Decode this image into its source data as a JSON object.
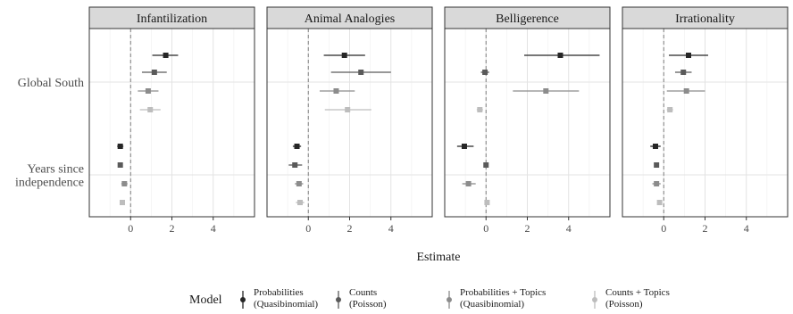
{
  "chart_data": {
    "type": "scatter",
    "subtype": "coefficient-plot-with-error-bars",
    "facets": [
      "Infantilization",
      "Animal Analogies",
      "Belligerence",
      "Irrationality"
    ],
    "y_categories": [
      "Global South",
      "Years since\nindependence"
    ],
    "xlabel": "Estimate",
    "x_ticks": [
      0,
      2,
      4
    ],
    "xlim": [
      -2,
      6
    ],
    "reference_line": 0,
    "legend": {
      "title": "Model",
      "position": "bottom",
      "entries": [
        {
          "label": "Probabilities\n(Quasibinomial)",
          "color": "#262626"
        },
        {
          "label": "Counts\n(Poisson)",
          "color": "#5a5a5a"
        },
        {
          "label": "Probabilities + Topics\n(Quasibinomial)",
          "color": "#8c8c8c"
        },
        {
          "label": "Counts + Topics\n(Poisson)",
          "color": "#bdbdbd"
        }
      ]
    },
    "series": [
      {
        "name": "Probabilities\n(Quasibinomial)",
        "values": [
          {
            "facet": "Infantilization",
            "term": "Global South",
            "est": 1.7,
            "lo": 1.05,
            "hi": 2.3
          },
          {
            "facet": "Infantilization",
            "term": "Years since\nindependence",
            "est": -0.5,
            "lo": -0.65,
            "hi": -0.35
          },
          {
            "facet": "Animal Analogies",
            "term": "Global South",
            "est": 1.75,
            "lo": 0.75,
            "hi": 2.75
          },
          {
            "facet": "Animal Analogies",
            "term": "Years since\nindependence",
            "est": -0.55,
            "lo": -0.75,
            "hi": -0.35
          },
          {
            "facet": "Belligerence",
            "term": "Global South",
            "est": 3.6,
            "lo": 1.85,
            "hi": 5.5
          },
          {
            "facet": "Belligerence",
            "term": "Years since\nindependence",
            "est": -1.05,
            "lo": -1.4,
            "hi": -0.6
          },
          {
            "facet": "Irrationality",
            "term": "Global South",
            "est": 1.2,
            "lo": 0.25,
            "hi": 2.15
          },
          {
            "facet": "Irrationality",
            "term": "Years since\nindependence",
            "est": -0.4,
            "lo": -0.65,
            "hi": -0.15
          }
        ]
      },
      {
        "name": "Counts\n(Poisson)",
        "values": [
          {
            "facet": "Infantilization",
            "term": "Global South",
            "est": 1.15,
            "lo": 0.55,
            "hi": 1.75
          },
          {
            "facet": "Infantilization",
            "term": "Years since\nindependence",
            "est": -0.5,
            "lo": -0.6,
            "hi": -0.4
          },
          {
            "facet": "Animal Analogies",
            "term": "Global South",
            "est": 2.55,
            "lo": 1.1,
            "hi": 4.0
          },
          {
            "facet": "Animal Analogies",
            "term": "Years since\nindependence",
            "est": -0.65,
            "lo": -0.95,
            "hi": -0.3
          },
          {
            "facet": "Belligerence",
            "term": "Global South",
            "est": -0.05,
            "lo": -0.25,
            "hi": 0.15
          },
          {
            "facet": "Belligerence",
            "term": "Years since\nindependence",
            "est": 0.0,
            "lo": -0.05,
            "hi": 0.05
          },
          {
            "facet": "Irrationality",
            "term": "Global South",
            "est": 0.95,
            "lo": 0.55,
            "hi": 1.35
          },
          {
            "facet": "Irrationality",
            "term": "Years since\nindependence",
            "est": -0.35,
            "lo": -0.45,
            "hi": -0.25
          }
        ]
      },
      {
        "name": "Probabilities + Topics\n(Quasibinomial)",
        "values": [
          {
            "facet": "Infantilization",
            "term": "Global South",
            "est": 0.85,
            "lo": 0.35,
            "hi": 1.35
          },
          {
            "facet": "Infantilization",
            "term": "Years since\nindependence",
            "est": -0.3,
            "lo": -0.45,
            "hi": -0.15
          },
          {
            "facet": "Animal Analogies",
            "term": "Global South",
            "est": 1.35,
            "lo": 0.55,
            "hi": 2.25
          },
          {
            "facet": "Animal Analogies",
            "term": "Years since\nindependence",
            "est": -0.45,
            "lo": -0.65,
            "hi": -0.25
          },
          {
            "facet": "Belligerence",
            "term": "Global South",
            "est": 2.9,
            "lo": 1.3,
            "hi": 4.5
          },
          {
            "facet": "Belligerence",
            "term": "Years since\nindependence",
            "est": -0.85,
            "lo": -1.15,
            "hi": -0.5
          },
          {
            "facet": "Irrationality",
            "term": "Global South",
            "est": 1.1,
            "lo": 0.15,
            "hi": 2.0
          },
          {
            "facet": "Irrationality",
            "term": "Years since\nindependence",
            "est": -0.35,
            "lo": -0.55,
            "hi": -0.15
          }
        ]
      },
      {
        "name": "Counts + Topics\n(Poisson)",
        "values": [
          {
            "facet": "Infantilization",
            "term": "Global South",
            "est": 0.95,
            "lo": 0.45,
            "hi": 1.45
          },
          {
            "facet": "Infantilization",
            "term": "Years since\nindependence",
            "est": -0.4,
            "lo": -0.5,
            "hi": -0.3
          },
          {
            "facet": "Animal Analogies",
            "term": "Global South",
            "est": 1.9,
            "lo": 0.8,
            "hi": 3.05
          },
          {
            "facet": "Animal Analogies",
            "term": "Years since\nindependence",
            "est": -0.4,
            "lo": -0.6,
            "hi": -0.2
          },
          {
            "facet": "Belligerence",
            "term": "Global South",
            "est": -0.3,
            "lo": -0.45,
            "hi": -0.15
          },
          {
            "facet": "Belligerence",
            "term": "Years since\nindependence",
            "est": 0.05,
            "lo": 0.0,
            "hi": 0.1
          },
          {
            "facet": "Irrationality",
            "term": "Global South",
            "est": 0.3,
            "lo": 0.15,
            "hi": 0.45
          },
          {
            "facet": "Irrationality",
            "term": "Years since\nindependence",
            "est": -0.2,
            "lo": -0.3,
            "hi": -0.1
          }
        ]
      }
    ]
  }
}
